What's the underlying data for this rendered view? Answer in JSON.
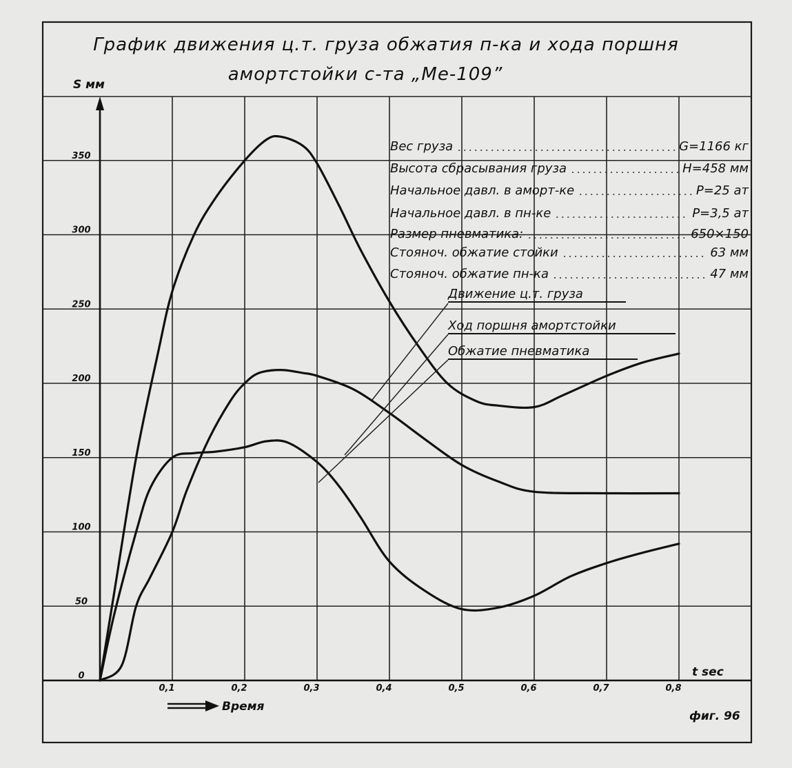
{
  "chart_data": {
    "type": "line",
    "title_line1": "График движения ц.т. груза обжатия п-ка и хода поршня",
    "title_line2": "амортстойки с-та „Ме-109”",
    "ylabel": "S мм",
    "xlabel": "t sec",
    "xaxis_note": "Время",
    "fig_label": "фиг. 96",
    "xlim": [
      0,
      0.8
    ],
    "ylim": [
      0,
      400
    ],
    "x_ticks": [
      "0,1",
      "0,2",
      "0,3",
      "0,4",
      "0,5",
      "0,6",
      "0,7",
      "0,8"
    ],
    "y_ticks": [
      "0",
      "50",
      "100",
      "150",
      "200",
      "250",
      "300",
      "350"
    ],
    "parameters": [
      {
        "label": "Вес груза",
        "value": "G=1166 кг"
      },
      {
        "label": "Высота сбрасывания груза",
        "value": "H=458 мм"
      },
      {
        "label": "Начальное давл. в аморт-ке",
        "value": "P=25 ат"
      },
      {
        "label": "Начальное давл. в пн-ке",
        "value": "P=3,5 ат"
      },
      {
        "label": "Размер пневматика:",
        "value": "650×150"
      },
      {
        "label": "Стояноч. обжатие стойки",
        "value": "63 мм"
      },
      {
        "label": "Стояноч. обжатие пн-ка",
        "value": "47 мм"
      }
    ],
    "series": [
      {
        "name": "Движение ц.т. груза",
        "x": [
          0,
          0.02,
          0.05,
          0.08,
          0.1,
          0.13,
          0.16,
          0.2,
          0.23,
          0.25,
          0.28,
          0.3,
          0.33,
          0.36,
          0.4,
          0.44,
          0.48,
          0.52,
          0.55,
          0.6,
          0.64,
          0.7,
          0.75,
          0.8
        ],
        "y": [
          0,
          60,
          150,
          220,
          262,
          300,
          325,
          350,
          364,
          366,
          360,
          348,
          320,
          290,
          255,
          225,
          200,
          188,
          185,
          184,
          192,
          205,
          214,
          220
        ]
      },
      {
        "name": "Ход поршня амортстойки",
        "x": [
          0,
          0.02,
          0.05,
          0.07,
          0.1,
          0.13,
          0.16,
          0.2,
          0.23,
          0.26,
          0.3,
          0.33,
          0.36,
          0.4,
          0.45,
          0.5,
          0.55,
          0.6,
          0.65,
          0.7,
          0.75,
          0.8
        ],
        "y": [
          0,
          45,
          100,
          130,
          150,
          153,
          154,
          157,
          161,
          160,
          147,
          131,
          110,
          80,
          60,
          48,
          49,
          57,
          70,
          79,
          86,
          92
        ]
      },
      {
        "name": "Обжатие пневматика",
        "x": [
          0,
          0.03,
          0.05,
          0.07,
          0.1,
          0.12,
          0.15,
          0.18,
          0.2,
          0.22,
          0.25,
          0.28,
          0.3,
          0.35,
          0.4,
          0.45,
          0.5,
          0.55,
          0.6,
          0.7,
          0.8
        ],
        "y": [
          0,
          10,
          50,
          70,
          100,
          128,
          162,
          188,
          200,
          207,
          209,
          207,
          205,
          196,
          180,
          162,
          145,
          134,
          127,
          126,
          126
        ]
      }
    ]
  }
}
